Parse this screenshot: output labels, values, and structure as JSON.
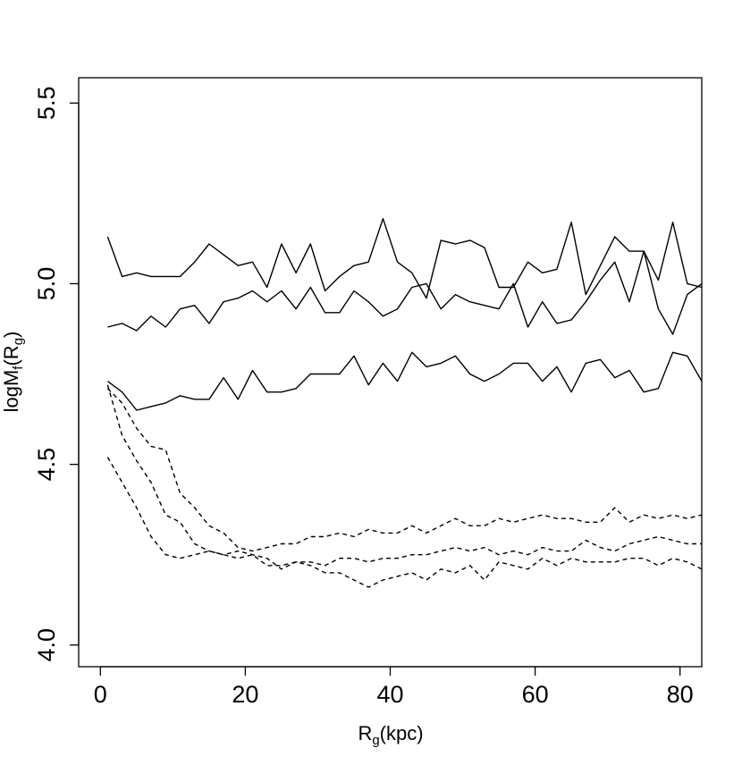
{
  "chart_data": {
    "type": "line",
    "xlabel": {
      "main": "R",
      "sub": "g",
      "rest": "(kpc)"
    },
    "ylabel": {
      "main": "logM",
      "sub1": "f",
      "mid": "(R",
      "sub2": "g",
      "rest": ")"
    },
    "xlim": [
      -3,
      83
    ],
    "ylim": [
      3.94,
      5.57
    ],
    "x_ticks": [
      0,
      20,
      40,
      60,
      80
    ],
    "x_tick_labels": [
      "0",
      "20",
      "40",
      "60",
      "80"
    ],
    "y_ticks": [
      4.0,
      4.5,
      5.0,
      5.5
    ],
    "y_tick_labels": [
      "4.0",
      "4.5",
      "5.0",
      "5.5"
    ],
    "x": [
      1,
      3,
      5,
      7,
      9,
      11,
      13,
      15,
      17,
      19,
      21,
      23,
      25,
      27,
      29,
      31,
      33,
      35,
      37,
      39,
      41,
      43,
      45,
      47,
      49,
      51,
      53,
      55,
      57,
      59,
      61,
      63,
      65,
      67,
      69,
      71,
      73,
      75,
      77,
      79,
      81,
      83
    ],
    "series": [
      {
        "style": "solid",
        "values": [
          5.13,
          5.02,
          5.03,
          5.02,
          5.02,
          5.02,
          5.06,
          5.11,
          5.08,
          5.05,
          5.06,
          4.99,
          5.11,
          5.03,
          5.11,
          4.98,
          5.02,
          5.05,
          5.06,
          5.18,
          5.06,
          5.03,
          4.96,
          5.12,
          5.11,
          5.12,
          5.1,
          4.99,
          4.99,
          5.06,
          5.03,
          5.04,
          5.17,
          4.97,
          5.05,
          5.13,
          5.09,
          5.09,
          5.01,
          5.17,
          5.0,
          4.99
        ]
      },
      {
        "style": "solid",
        "values": [
          4.88,
          4.89,
          4.87,
          4.91,
          4.88,
          4.93,
          4.94,
          4.89,
          4.95,
          4.96,
          4.98,
          4.95,
          4.98,
          4.93,
          4.99,
          4.92,
          4.92,
          4.98,
          4.95,
          4.91,
          4.93,
          4.99,
          5.0,
          4.93,
          4.97,
          4.95,
          4.94,
          4.93,
          5.0,
          4.88,
          4.95,
          4.89,
          4.9,
          4.95,
          5.01,
          5.06,
          4.95,
          5.09,
          4.93,
          4.86,
          4.97,
          5.0
        ]
      },
      {
        "style": "solid",
        "values": [
          4.73,
          4.7,
          4.65,
          4.66,
          4.67,
          4.69,
          4.68,
          4.68,
          4.74,
          4.68,
          4.76,
          4.7,
          4.7,
          4.71,
          4.75,
          4.75,
          4.75,
          4.8,
          4.72,
          4.78,
          4.73,
          4.81,
          4.77,
          4.78,
          4.8,
          4.75,
          4.73,
          4.75,
          4.78,
          4.78,
          4.73,
          4.77,
          4.7,
          4.78,
          4.79,
          4.74,
          4.76,
          4.7,
          4.71,
          4.81,
          4.8,
          4.73
        ]
      },
      {
        "style": "dashed",
        "values": [
          4.71,
          4.67,
          4.6,
          4.55,
          4.54,
          4.42,
          4.38,
          4.33,
          4.31,
          4.27,
          4.26,
          4.27,
          4.28,
          4.28,
          4.3,
          4.3,
          4.31,
          4.3,
          4.32,
          4.31,
          4.31,
          4.33,
          4.31,
          4.33,
          4.35,
          4.33,
          4.33,
          4.35,
          4.34,
          4.35,
          4.36,
          4.35,
          4.35,
          4.34,
          4.34,
          4.38,
          4.34,
          4.36,
          4.35,
          4.36,
          4.35,
          4.36
        ]
      },
      {
        "style": "dashed",
        "values": [
          4.72,
          4.58,
          4.51,
          4.45,
          4.36,
          4.34,
          4.28,
          4.26,
          4.25,
          4.24,
          4.25,
          4.22,
          4.22,
          4.23,
          4.22,
          4.2,
          4.2,
          4.18,
          4.16,
          4.18,
          4.19,
          4.2,
          4.18,
          4.21,
          4.2,
          4.22,
          4.18,
          4.23,
          4.22,
          4.21,
          4.24,
          4.22,
          4.24,
          4.23,
          4.23,
          4.23,
          4.24,
          4.24,
          4.22,
          4.24,
          4.23,
          4.21
        ]
      },
      {
        "style": "dashed",
        "values": [
          4.52,
          4.45,
          4.38,
          4.3,
          4.25,
          4.24,
          4.25,
          4.26,
          4.25,
          4.26,
          4.25,
          4.24,
          4.21,
          4.23,
          4.23,
          4.22,
          4.24,
          4.24,
          4.23,
          4.24,
          4.24,
          4.25,
          4.25,
          4.26,
          4.27,
          4.26,
          4.27,
          4.25,
          4.26,
          4.25,
          4.27,
          4.26,
          4.26,
          4.29,
          4.27,
          4.26,
          4.28,
          4.29,
          4.3,
          4.29,
          4.28,
          4.28
        ]
      }
    ]
  }
}
